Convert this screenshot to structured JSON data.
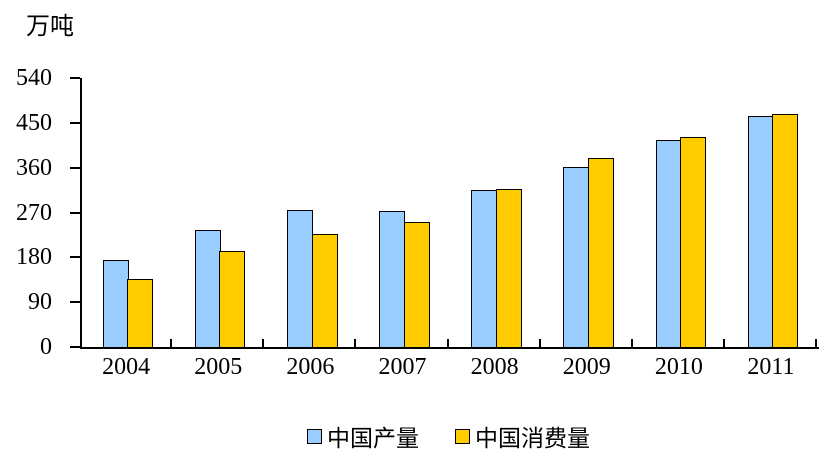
{
  "unit_label": "万吨",
  "chart_data": {
    "type": "bar",
    "title": "",
    "ylabel": "万吨",
    "xlabel": "",
    "ylim": [
      0,
      540
    ],
    "ytick_step": 90,
    "yticks": [
      0,
      90,
      180,
      270,
      360,
      450,
      540
    ],
    "grid": false,
    "legend_position": "bottom",
    "categories": [
      "2004",
      "2005",
      "2006",
      "2007",
      "2008",
      "2009",
      "2010",
      "2011"
    ],
    "series": [
      {
        "name": "中国产量",
        "color": "#99CCFF",
        "values": [
          174,
          234,
          275,
          273,
          315,
          362,
          416,
          464
        ]
      },
      {
        "name": "中国消费量",
        "color": "#FFCC00",
        "values": [
          136,
          193,
          227,
          251,
          317,
          379,
          421,
          467
        ]
      }
    ]
  }
}
